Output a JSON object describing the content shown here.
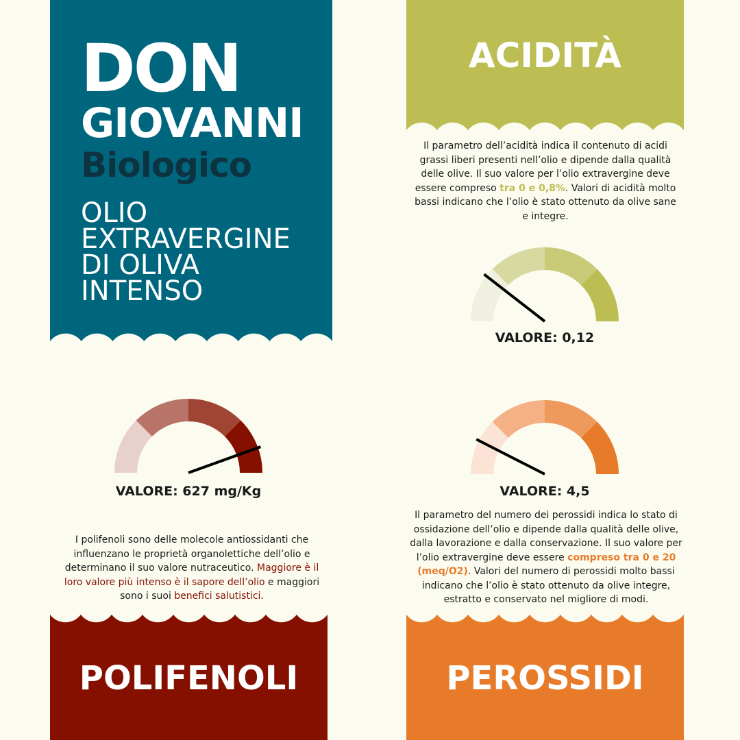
{
  "brand": {
    "line1": "DON",
    "line2": "GIOVANNI",
    "line3": "Biologico",
    "subtitle": "OLIO EXTRAVERGINE DI OLIVA INTENSO",
    "color": "#00667e"
  },
  "acidita": {
    "title": "ACIDITÀ",
    "color": "#bcbd52",
    "text_before": "Il parametro dell’acidità indica il contenuto di acidi grassi liberi presenti nell’olio e dipende dalla qualità delle olive. Il suo valore per l’olio extravergine deve essere compreso ",
    "text_highlight": "tra 0 e 0,8%",
    "text_after": ". Valori di acidità molto bassi indicano che l’olio è stato ottenuto da olive sane e integre.",
    "value_label": "VALORE: 0,12",
    "gauge_colors": [
      "#f0f0e0",
      "#d7d9a0",
      "#c8ca78",
      "#bcbd52"
    ],
    "needle_fraction": 0.21
  },
  "polifenoli": {
    "title": "POLIFENOLI",
    "color": "#861000",
    "text_plain1": "I polifenoli sono delle molecole antiossidanti che influenzano le proprietà organolettiche dell’olio e determinano il suo valore nutraceutico. ",
    "text_highlight1": "Maggiore è il loro valore più intenso è il sapore dell’olio",
    "text_plain2": " e maggiori sono i suoi ",
    "text_highlight2": "benefici salutistici",
    "text_plain3": ".",
    "value_label": "VALORE: 627 mg/Kg",
    "gauge_colors": [
      "#e8d0cc",
      "#b87468",
      "#a04534",
      "#861000"
    ],
    "needle_fraction": 0.89
  },
  "perossidi": {
    "title": "PEROSSIDI",
    "color": "#e87b2a",
    "text_before": "Il parametro del numero dei perossidi indica lo stato di ossidazione dell’olio e dipende dalla qualità delle olive, dalla lavorazione e dalla conservazione. Il suo valore per l’olio extravergine deve essere ",
    "text_highlight": "compreso tra 0 e 20 (meq/O2)",
    "text_after": ". Valori del numero di perossidi molto bassi indicano che l’olio è stato ottenuto da olive integre, estratto e conservato nel migliore di modi.",
    "value_label": "VALORE: 4,5",
    "gauge_colors": [
      "#fbe3d5",
      "#f3b185",
      "#ee9a5c",
      "#e87b2a"
    ],
    "needle_fraction": 0.15
  }
}
